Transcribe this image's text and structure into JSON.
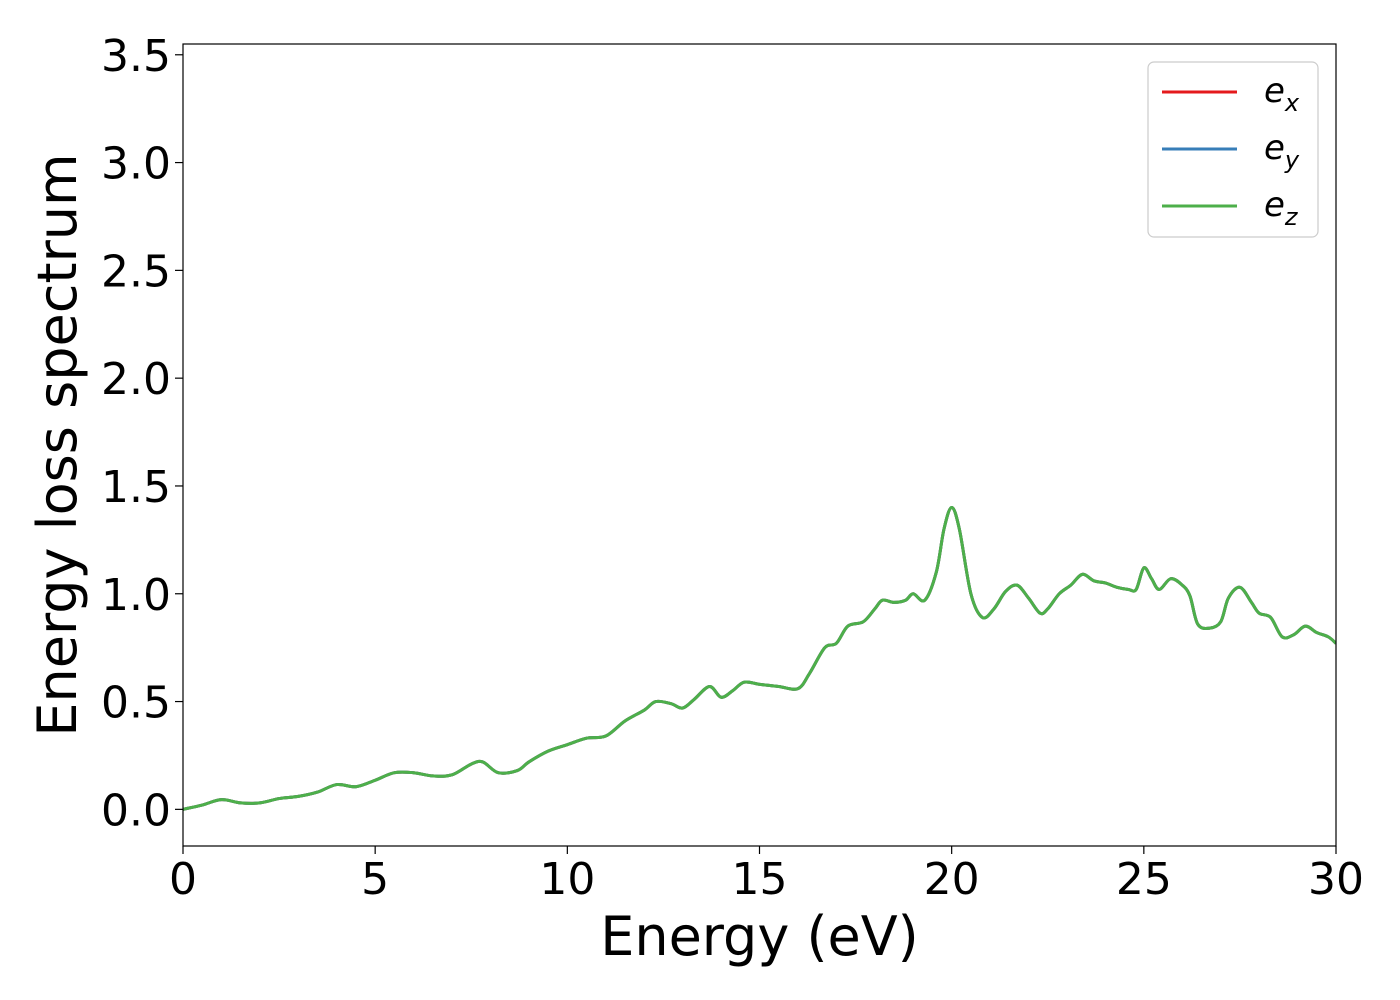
{
  "chart_data": {
    "type": "line",
    "xlabel": "Energy (eV)",
    "ylabel": "Energy loss spectrum",
    "xlim": [
      0,
      30
    ],
    "ylim": [
      -0.17,
      3.55
    ],
    "xticks": [
      0,
      5,
      10,
      15,
      20,
      25,
      30
    ],
    "xtick_labels": [
      "0",
      "5",
      "10",
      "15",
      "20",
      "25",
      "30"
    ],
    "yticks": [
      0.0,
      0.5,
      1.0,
      1.5,
      2.0,
      2.5,
      3.0,
      3.5
    ],
    "ytick_labels": [
      "0.0",
      "0.5",
      "1.0",
      "1.5",
      "2.0",
      "2.5",
      "3.0",
      "3.5"
    ],
    "grid": false,
    "legend_position": "top-right",
    "x": [
      0,
      0.5,
      1.0,
      1.5,
      2.0,
      2.5,
      3.0,
      3.5,
      4.0,
      4.5,
      5.0,
      5.5,
      6.0,
      6.5,
      7.0,
      7.5,
      7.8,
      8.2,
      8.7,
      9.0,
      9.5,
      10.0,
      10.5,
      11.0,
      11.5,
      12.0,
      12.3,
      12.7,
      13.0,
      13.3,
      13.7,
      14.0,
      14.3,
      14.6,
      15.0,
      15.5,
      16.0,
      16.3,
      16.7,
      17.0,
      17.3,
      17.7,
      18.0,
      18.2,
      18.5,
      18.8,
      19.0,
      19.3,
      19.6,
      19.8,
      20.0,
      20.2,
      20.5,
      20.8,
      21.1,
      21.4,
      21.7,
      22.0,
      22.3,
      22.5,
      22.8,
      23.1,
      23.4,
      23.7,
      24.0,
      24.3,
      24.6,
      24.8,
      25.0,
      25.2,
      25.4,
      25.7,
      26.0,
      26.2,
      26.4,
      26.7,
      27.0,
      27.2,
      27.5,
      27.8,
      28.0,
      28.3,
      28.6,
      28.9,
      29.2,
      29.5,
      29.8,
      30.0
    ],
    "series": [
      {
        "name": "e_x",
        "color": "#e41a1c",
        "values": [
          0.0,
          0.02,
          0.045,
          0.03,
          0.03,
          0.05,
          0.06,
          0.08,
          0.115,
          0.105,
          0.135,
          0.17,
          0.17,
          0.155,
          0.16,
          0.21,
          0.22,
          0.17,
          0.18,
          0.22,
          0.27,
          0.3,
          0.33,
          0.34,
          0.41,
          0.46,
          0.5,
          0.49,
          0.47,
          0.51,
          0.57,
          0.52,
          0.55,
          0.59,
          0.58,
          0.57,
          0.56,
          0.63,
          0.75,
          0.77,
          0.85,
          0.87,
          0.93,
          0.97,
          0.96,
          0.97,
          1.0,
          0.97,
          1.1,
          1.3,
          1.4,
          1.3,
          1.0,
          0.89,
          0.93,
          1.01,
          1.04,
          0.98,
          0.91,
          0.93,
          1.0,
          1.04,
          1.09,
          1.06,
          1.05,
          1.03,
          1.02,
          1.02,
          1.12,
          1.07,
          1.02,
          1.07,
          1.04,
          0.99,
          0.86,
          0.84,
          0.87,
          0.98,
          1.03,
          0.96,
          0.91,
          0.89,
          0.8,
          0.81,
          0.85,
          0.82,
          0.8,
          0.77
        ]
      },
      {
        "name": "e_y",
        "color": "#377eb8",
        "values": [
          0.0,
          0.02,
          0.045,
          0.03,
          0.03,
          0.05,
          0.06,
          0.08,
          0.115,
          0.105,
          0.135,
          0.17,
          0.17,
          0.155,
          0.16,
          0.21,
          0.22,
          0.17,
          0.18,
          0.22,
          0.27,
          0.3,
          0.33,
          0.34,
          0.41,
          0.46,
          0.5,
          0.49,
          0.47,
          0.51,
          0.57,
          0.52,
          0.55,
          0.59,
          0.58,
          0.57,
          0.56,
          0.63,
          0.75,
          0.77,
          0.85,
          0.87,
          0.93,
          0.97,
          0.96,
          0.97,
          1.0,
          0.97,
          1.1,
          1.3,
          1.4,
          1.3,
          1.0,
          0.89,
          0.93,
          1.01,
          1.04,
          0.98,
          0.91,
          0.93,
          1.0,
          1.04,
          1.09,
          1.06,
          1.05,
          1.03,
          1.02,
          1.02,
          1.12,
          1.07,
          1.02,
          1.07,
          1.04,
          0.99,
          0.86,
          0.84,
          0.87,
          0.98,
          1.03,
          0.96,
          0.91,
          0.89,
          0.8,
          0.81,
          0.85,
          0.82,
          0.8,
          0.77
        ]
      },
      {
        "name": "e_z",
        "color": "#4daf4a",
        "values": [
          0.0,
          0.02,
          0.045,
          0.03,
          0.03,
          0.05,
          0.06,
          0.08,
          0.115,
          0.105,
          0.135,
          0.17,
          0.17,
          0.155,
          0.16,
          0.21,
          0.22,
          0.17,
          0.18,
          0.22,
          0.27,
          0.3,
          0.33,
          0.34,
          0.41,
          0.46,
          0.5,
          0.49,
          0.47,
          0.51,
          0.57,
          0.52,
          0.55,
          0.59,
          0.58,
          0.57,
          0.56,
          0.63,
          0.75,
          0.77,
          0.85,
          0.87,
          0.93,
          0.97,
          0.96,
          0.97,
          1.0,
          0.97,
          1.1,
          1.3,
          1.4,
          1.3,
          1.0,
          0.89,
          0.93,
          1.01,
          1.04,
          0.98,
          0.91,
          0.93,
          1.0,
          1.04,
          1.09,
          1.06,
          1.05,
          1.03,
          1.02,
          1.02,
          1.12,
          1.07,
          1.02,
          1.07,
          1.04,
          0.99,
          0.86,
          0.84,
          0.87,
          0.98,
          1.03,
          0.96,
          0.91,
          0.89,
          0.8,
          0.81,
          0.85,
          0.82,
          0.8,
          0.77
        ]
      }
    ],
    "legend": [
      {
        "base": "e",
        "sub": "x",
        "color": "#e41a1c"
      },
      {
        "base": "e",
        "sub": "y",
        "color": "#377eb8"
      },
      {
        "base": "e",
        "sub": "z",
        "color": "#4daf4a"
      }
    ]
  }
}
